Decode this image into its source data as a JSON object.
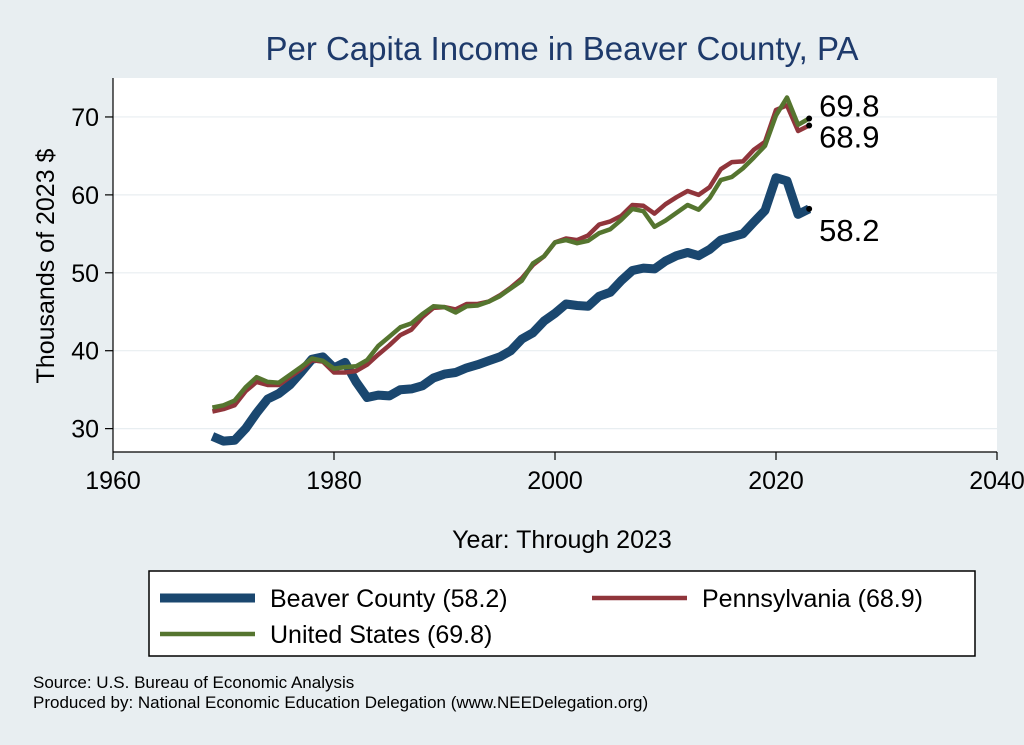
{
  "chart_data": {
    "type": "line",
    "title": "Per Capita Income in Beaver County, PA",
    "xlabel": "Year: Through 2023",
    "ylabel": "Thousands of 2023 $",
    "xlim": [
      1960,
      2040
    ],
    "ylim": [
      27,
      75
    ],
    "xticks": [
      1960,
      1980,
      2000,
      2020,
      2040
    ],
    "yticks": [
      30,
      40,
      50,
      60,
      70
    ],
    "grid": true,
    "legend_position": "bottom",
    "x": [
      1969,
      1970,
      1971,
      1972,
      1973,
      1974,
      1975,
      1976,
      1977,
      1978,
      1979,
      1980,
      1981,
      1982,
      1983,
      1984,
      1985,
      1986,
      1987,
      1988,
      1989,
      1990,
      1991,
      1992,
      1993,
      1994,
      1995,
      1996,
      1997,
      1998,
      1999,
      2000,
      2001,
      2002,
      2003,
      2004,
      2005,
      2006,
      2007,
      2008,
      2009,
      2010,
      2011,
      2012,
      2013,
      2014,
      2015,
      2016,
      2017,
      2018,
      2019,
      2020,
      2021,
      2022,
      2023
    ],
    "series": [
      {
        "name": "Beaver County (58.2)",
        "color": "#1a476f",
        "end_label": "58.2",
        "values": [
          29.0,
          28.4,
          28.5,
          30.0,
          32.0,
          33.8,
          34.5,
          35.6,
          37.2,
          38.9,
          39.2,
          37.8,
          38.5,
          36.0,
          34.0,
          34.3,
          34.2,
          35.0,
          35.1,
          35.5,
          36.5,
          37.0,
          37.2,
          37.8,
          38.2,
          38.7,
          39.2,
          40.0,
          41.5,
          42.3,
          43.8,
          44.8,
          46.0,
          45.8,
          45.7,
          47.0,
          47.5,
          49.0,
          50.3,
          50.6,
          50.5,
          51.5,
          52.2,
          52.6,
          52.2,
          53.0,
          54.2,
          54.6,
          55.0,
          56.5,
          58.0,
          62.2,
          61.8,
          57.5,
          58.2
        ]
      },
      {
        "name": "Pennsylvania (68.9)",
        "color": "#90353b",
        "end_label": "68.9",
        "values": [
          32.2,
          32.5,
          33.0,
          34.8,
          36.0,
          35.6,
          35.6,
          36.6,
          37.6,
          38.8,
          38.6,
          37.2,
          37.2,
          37.4,
          38.2,
          39.5,
          40.7,
          42.0,
          42.7,
          44.3,
          45.5,
          45.6,
          45.3,
          46.0,
          46.0,
          46.3,
          47.1,
          48.1,
          49.3,
          51.0,
          52.1,
          53.9,
          54.4,
          54.2,
          54.8,
          56.2,
          56.6,
          57.3,
          58.7,
          58.6,
          57.6,
          58.8,
          59.7,
          60.5,
          60.0,
          61.0,
          63.3,
          64.2,
          64.3,
          65.8,
          66.8,
          70.9,
          71.5,
          68.2,
          68.9
        ]
      },
      {
        "name": "United States (69.8)",
        "color": "#55752f",
        "end_label": "69.8",
        "values": [
          32.7,
          33.0,
          33.6,
          35.3,
          36.6,
          36.0,
          35.9,
          36.9,
          37.9,
          39.0,
          38.7,
          37.7,
          37.9,
          38.0,
          38.8,
          40.6,
          41.8,
          43.0,
          43.5,
          44.7,
          45.7,
          45.6,
          44.9,
          45.7,
          45.8,
          46.3,
          47.0,
          48.0,
          49.0,
          51.2,
          52.1,
          53.9,
          54.2,
          53.8,
          54.1,
          55.1,
          55.6,
          56.8,
          58.2,
          57.9,
          55.9,
          56.7,
          57.7,
          58.7,
          58.1,
          59.6,
          61.9,
          62.3,
          63.4,
          64.8,
          66.3,
          70.2,
          72.5,
          69.0,
          69.8
        ]
      }
    ]
  },
  "footer": {
    "source": "Source: U.S. Bureau of Economic Analysis",
    "produced_by": "Produced by: National Economic Education Delegation (www.NEEDelegation.org)"
  }
}
